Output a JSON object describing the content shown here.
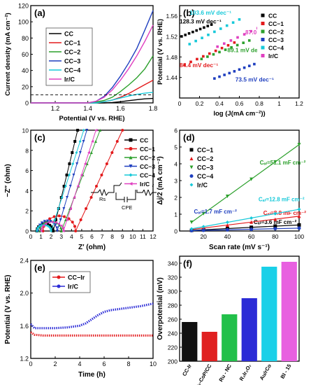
{
  "chart_data": [
    {
      "panel_label": "(a)",
      "type": "line",
      "xlabel": "Potential (V vs. RHE)",
      "ylabel": "Current density (mA cm⁻²)",
      "xlim": [
        1.05,
        1.8
      ],
      "ylim": [
        0,
        120
      ],
      "xticks": [
        1.2,
        1.4,
        1.6,
        1.8
      ],
      "yticks": [
        0,
        20,
        40,
        60,
        80,
        100,
        120
      ],
      "legend_position": "top-left",
      "reference_line": {
        "y": 10,
        "style": "dashed"
      },
      "series": [
        {
          "name": "CC",
          "color": "#000000",
          "x": [
            1.05,
            1.5,
            1.55,
            1.6,
            1.65,
            1.7,
            1.75,
            1.8
          ],
          "y": [
            0,
            0,
            0.5,
            1.5,
            2.8,
            4.0,
            5.0,
            5.5
          ]
        },
        {
          "name": "CC−1",
          "color": "#e31a1c",
          "x": [
            1.05,
            1.42,
            1.5,
            1.55,
            1.6,
            1.65,
            1.7,
            1.75,
            1.8
          ],
          "y": [
            0,
            0,
            1.5,
            3.5,
            7,
            11.5,
            17,
            22.5,
            28
          ]
        },
        {
          "name": "CC−2",
          "color": "#2ca02c",
          "x": [
            1.05,
            1.42,
            1.5,
            1.55,
            1.6,
            1.65,
            1.7,
            1.75,
            1.8
          ],
          "y": [
            0,
            0,
            3,
            7,
            14,
            22,
            31,
            42,
            58
          ]
        },
        {
          "name": "CC−3",
          "color": "#1f3fbf",
          "x": [
            1.05,
            1.4,
            1.45,
            1.5,
            1.55,
            1.6,
            1.65,
            1.7,
            1.75,
            1.8
          ],
          "y": [
            0,
            0,
            2,
            8,
            19,
            33,
            49,
            67,
            90,
            114
          ]
        },
        {
          "name": "CC−4",
          "color": "#17c9d9",
          "x": [
            1.05,
            1.45,
            1.5,
            1.55,
            1.6,
            1.65,
            1.7,
            1.75,
            1.8
          ],
          "y": [
            0,
            0,
            1.5,
            3.5,
            6,
            8.5,
            10.5,
            12,
            13
          ]
        },
        {
          "name": "Ir/C",
          "color": "#e040c0",
          "x": [
            1.05,
            1.4,
            1.45,
            1.5,
            1.55,
            1.6,
            1.65,
            1.7,
            1.75,
            1.8
          ],
          "y": [
            0,
            0,
            2,
            7,
            16,
            28,
            42,
            58,
            76,
            96
          ]
        }
      ]
    },
    {
      "panel_label": "(b)",
      "type": "scatter",
      "xlabel": "log (J(mA cm⁻²))",
      "ylabel": "Potential (V vs. RHE)",
      "xlim": [
        0.0,
        1.2
      ],
      "ylim": [
        1.4,
        1.58
      ],
      "xticks": [
        0.0,
        0.2,
        0.4,
        0.6,
        0.8,
        1.0,
        1.2
      ],
      "yticks": [
        1.44,
        1.48,
        1.52,
        1.56
      ],
      "legend_position": "top-right",
      "series": [
        {
          "name": "CC",
          "color": "#000000",
          "marker": "square",
          "x_range": [
            0.02,
            0.32
          ],
          "y_range": [
            1.52,
            1.543
          ],
          "annotation": "128.3 mV dec⁻¹"
        },
        {
          "name": "CC−1",
          "color": "#e31a1c",
          "marker": "square",
          "x_range": [
            0.05,
            0.55
          ],
          "y_range": [
            1.465,
            1.508
          ],
          "annotation": "84.4 mV dec⁻¹"
        },
        {
          "name": "CC−2",
          "color": "#2ca02c",
          "marker": "square",
          "x_range": [
            0.22,
            0.7
          ],
          "y_range": [
            1.476,
            1.512
          ],
          "annotation": "89.1 mV dec⁻¹"
        },
        {
          "name": "CC−3",
          "color": "#1f3fbf",
          "marker": "square",
          "x_range": [
            0.35,
            0.75
          ],
          "y_range": [
            1.438,
            1.466
          ],
          "annotation": "73.5 mV dec⁻¹"
        },
        {
          "name": "CC−4",
          "color": "#17c9d9",
          "marker": "square",
          "x_range": [
            0.1,
            0.6
          ],
          "y_range": [
            1.505,
            1.553
          ],
          "annotation": "103.6 mV dec⁻¹"
        },
        {
          "name": "Ir/C",
          "color": "#e040c0",
          "marker": "square",
          "x_range": [
            0.38,
            0.92
          ],
          "y_range": [
            1.5,
            1.548
          ],
          "annotation": "87.0 mV dec⁻¹"
        }
      ]
    },
    {
      "panel_label": "(c)",
      "type": "scatter",
      "xlabel": "Z′ (ohm)",
      "ylabel": "−Z″ (ohm)",
      "xlim": [
        0,
        12
      ],
      "ylim": [
        0,
        10
      ],
      "xticks": [
        0,
        1,
        2,
        3,
        4,
        5,
        6,
        7,
        8,
        9,
        10,
        11,
        12
      ],
      "yticks": [
        0,
        2,
        4,
        6,
        8,
        10
      ],
      "legend_position": "top-right",
      "inset": {
        "labels": [
          "Rs",
          "Rct",
          "CPE",
          "Zw"
        ]
      },
      "series": [
        {
          "name": "CC",
          "color": "#000000",
          "marker": "square",
          "arc_start": 0.6,
          "arc_end": 2.2,
          "arc_height": 0.7,
          "tail_end": [
            4.6,
            10
          ]
        },
        {
          "name": "CC−1",
          "color": "#e31a1c",
          "marker": "circle",
          "arc_start": 1.2,
          "arc_end": 4.4,
          "arc_height": 1.5,
          "tail_end": [
            9.0,
            10
          ]
        },
        {
          "name": "CC−2",
          "color": "#2ca02c",
          "marker": "triangle-up",
          "arc_start": 0.9,
          "arc_end": 3.0,
          "arc_height": 1.0,
          "tail_end": [
            6.8,
            10
          ]
        },
        {
          "name": "CC−3",
          "color": "#1f3fbf",
          "marker": "triangle-down",
          "arc_start": 0.7,
          "arc_end": 2.6,
          "arc_height": 1.0,
          "tail_end": [
            5.5,
            10
          ]
        },
        {
          "name": "CC−4",
          "color": "#17c9d9",
          "marker": "diamond",
          "arc_start": 0.6,
          "arc_end": 2.0,
          "arc_height": 0.6,
          "tail_end": [
            5.2,
            10
          ]
        },
        {
          "name": "Ir/C",
          "color": "#e040c0",
          "marker": "triangle-left",
          "arc_start": 1.0,
          "arc_end": 3.2,
          "arc_height": 0.9,
          "tail_end": [
            6.4,
            10
          ]
        }
      ]
    },
    {
      "panel_label": "(d)",
      "type": "scatter",
      "xlabel": "Scan rate (mV s⁻¹)",
      "ylabel": "Δj/2 (mA cm⁻²)",
      "xlim": [
        0,
        100
      ],
      "ylim": [
        0,
        6
      ],
      "xticks": [
        20,
        40,
        60,
        80,
        100
      ],
      "yticks": [
        0,
        1,
        2,
        3,
        4,
        5,
        6
      ],
      "legend_position": "top-left",
      "x": [
        10,
        20,
        40,
        60,
        80,
        100
      ],
      "series": [
        {
          "name": "CC−1",
          "color": "#000000",
          "marker": "square",
          "y": [
            0.04,
            0.07,
            0.15,
            0.22,
            0.29,
            0.36
          ],
          "annotation": "Cₐₗ=3.6 mF cm⁻²"
        },
        {
          "name": "CC−2",
          "color": "#e31a1c",
          "marker": "triangle-up",
          "y": [
            0.09,
            0.18,
            0.35,
            0.53,
            0.7,
            0.88
          ],
          "annotation": "Cₐₗ=8.8 mF cm⁻²"
        },
        {
          "name": "CC−3",
          "color": "#2ca02c",
          "marker": "triangle-down",
          "y": [
            0.52,
            1.03,
            2.06,
            3.08,
            4.11,
            5.14
          ],
          "annotation": "Cₐₗ=51.1 mF cm⁻²"
        },
        {
          "name": "CC−4",
          "color": "#1f3fbf",
          "marker": "circle",
          "y": [
            0.02,
            0.04,
            0.07,
            0.1,
            0.14,
            0.17
          ],
          "annotation": "Cₐₗ=1.7 mF cm⁻²"
        },
        {
          "name": "Ir/C",
          "color": "#17c9d9",
          "marker": "diamond",
          "y": [
            0.13,
            0.26,
            0.52,
            0.77,
            1.03,
            1.29
          ],
          "annotation": "Cₐₗ=12.8 mF cm⁻²"
        }
      ]
    },
    {
      "panel_label": "(e)",
      "type": "line",
      "xlabel": "Time (h)",
      "ylabel": "Potential (V vs. RHE)",
      "xlim": [
        0,
        10
      ],
      "ylim": [
        1.2,
        2.4
      ],
      "xticks": [
        0,
        2,
        4,
        6,
        8,
        10
      ],
      "yticks": [
        1.2,
        1.6,
        2.0,
        2.4
      ],
      "legend_position": "top-left",
      "series": [
        {
          "name": "CC−Ir",
          "color": "#e31a1c",
          "x": [
            0,
            0.3,
            1,
            2,
            3,
            4,
            5,
            6,
            7,
            8,
            9,
            10
          ],
          "y": [
            1.52,
            1.49,
            1.48,
            1.48,
            1.48,
            1.48,
            1.48,
            1.48,
            1.48,
            1.48,
            1.48,
            1.48
          ]
        },
        {
          "name": "Ir/C",
          "color": "#2b2bd6",
          "x": [
            0,
            0.3,
            1,
            2,
            3,
            4,
            4.5,
            5,
            5.5,
            6,
            6.5,
            7,
            8,
            9,
            10
          ],
          "y": [
            1.62,
            1.57,
            1.57,
            1.57,
            1.58,
            1.6,
            1.63,
            1.68,
            1.73,
            1.77,
            1.79,
            1.8,
            1.82,
            1.84,
            1.87
          ]
        }
      ]
    },
    {
      "panel_label": "(f)",
      "type": "bar",
      "ylabel": "Overpotential (mV)",
      "ylim": [
        200,
        350
      ],
      "yticks": [
        200,
        220,
        240,
        260,
        280,
        300,
        320,
        340
      ],
      "categories": [
        "CC-Ir",
        "Ir₃-CoP/CC",
        "Ru - NC",
        "R₂Ir₂O₇",
        "Au/rCo",
        "BI - 15"
      ],
      "values": [
        256,
        242,
        267,
        290,
        335,
        342
      ],
      "colors": [
        "#111111",
        "#e02020",
        "#22c04a",
        "#2b2bd6",
        "#19d0e8",
        "#e860e0"
      ]
    }
  ]
}
